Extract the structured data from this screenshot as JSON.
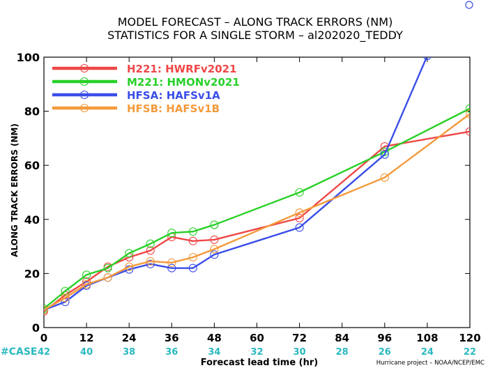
{
  "title_line1": "MODEL FORECAST – ALONG TRACK ERRORS (NM)",
  "title_line2": "STATISTICS FOR A SINGLE STORM – al202020_TEDDY",
  "chart_data": {
    "type": "line",
    "xlabel": "Forecast lead time (hr)",
    "ylabel": "ALONG TRACK ERRORS (NM)",
    "xlim": [
      0,
      120
    ],
    "ylim": [
      0,
      100
    ],
    "x_ticks": [
      0,
      12,
      24,
      36,
      48,
      60,
      72,
      84,
      96,
      108,
      120
    ],
    "y_ticks": [
      0,
      20,
      40,
      60,
      80,
      100
    ],
    "grid": false,
    "legend": "top-left",
    "series": [
      {
        "name": "H221: HWRFv2021",
        "color": "#ef4747",
        "points": [
          [
            0,
            6
          ],
          [
            6,
            12
          ],
          [
            12,
            17
          ],
          [
            18,
            22.5
          ],
          [
            24,
            26
          ],
          [
            30,
            28.5
          ],
          [
            36,
            33.5
          ],
          [
            42,
            32
          ],
          [
            48,
            32.5
          ],
          [
            72,
            40.5
          ],
          [
            96,
            67
          ],
          [
            120,
            72.5
          ]
        ]
      },
      {
        "name": "M221: HMONv2021",
        "color": "#28d028",
        "points": [
          [
            0,
            7
          ],
          [
            6,
            13.5
          ],
          [
            12,
            19.5
          ],
          [
            18,
            22
          ],
          [
            24,
            27.5
          ],
          [
            30,
            31
          ],
          [
            36,
            35
          ],
          [
            42,
            35.5
          ],
          [
            48,
            38
          ],
          [
            72,
            50
          ],
          [
            96,
            65
          ],
          [
            120,
            81
          ]
        ]
      },
      {
        "name": "HFSA: HAFSv1A",
        "color": "#3a4ee8",
        "points": [
          [
            0,
            6.5
          ],
          [
            6,
            9.5
          ],
          [
            12,
            15.5
          ],
          [
            18,
            18.5
          ],
          [
            24,
            21.5
          ],
          [
            30,
            23.5
          ],
          [
            36,
            22
          ],
          [
            42,
            22
          ],
          [
            48,
            27
          ],
          [
            72,
            37
          ],
          [
            96,
            64
          ],
          [
            108,
            100.5
          ]
        ]
      },
      {
        "name": "HFSB: HAFSv1B",
        "color": "#f39a3c",
        "points": [
          [
            0,
            6.5
          ],
          [
            6,
            11
          ],
          [
            12,
            16
          ],
          [
            18,
            18.5
          ],
          [
            24,
            22.5
          ],
          [
            30,
            24.5
          ],
          [
            36,
            24
          ],
          [
            42,
            26
          ],
          [
            48,
            29
          ],
          [
            72,
            42.5
          ],
          [
            96,
            55.5
          ],
          [
            120,
            79
          ]
        ]
      }
    ],
    "case_label": "#CASE",
    "case_color": "#2ab8c0",
    "cases": [
      42,
      40,
      38,
      36,
      34,
      32,
      30,
      28,
      26,
      24,
      22
    ]
  },
  "footer_credit": "Hurricane project – NOAA/NCEP/EMC"
}
